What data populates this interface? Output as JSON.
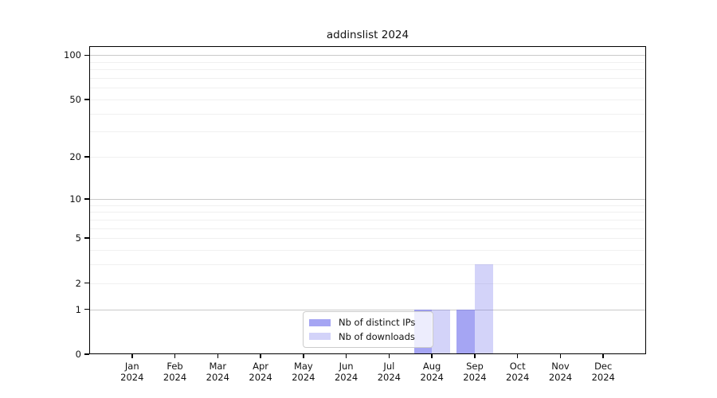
{
  "page": {
    "background": "#ffffff"
  },
  "chart_data": {
    "type": "bar",
    "title": "addinslist 2024",
    "categories": [
      "Jan",
      "Feb",
      "Mar",
      "Apr",
      "May",
      "Jun",
      "Jul",
      "Aug",
      "Sep",
      "Oct",
      "Nov",
      "Dec"
    ],
    "x_year_label": "2024",
    "series": [
      {
        "name": "Nb of distinct IPs",
        "color": "rgba(110,110,235,0.62)",
        "values": [
          0,
          0,
          0,
          0,
          0,
          0,
          0,
          1,
          1,
          0,
          0,
          0
        ]
      },
      {
        "name": "Nb of downloads",
        "color": "rgba(110,110,235,0.30)",
        "values": [
          0,
          0,
          0,
          0,
          0,
          0,
          0,
          1,
          3,
          0,
          0,
          0
        ]
      }
    ],
    "y_ticks": [
      0,
      1,
      2,
      5,
      10,
      20,
      50,
      100
    ],
    "y_major_gridlines": [
      1,
      10,
      100
    ],
    "y_minor_gridlines": [
      2,
      3,
      4,
      5,
      6,
      7,
      8,
      9,
      20,
      30,
      40,
      50,
      60,
      70,
      80,
      90
    ],
    "scale": "log10(1+y)",
    "ylim": [
      0,
      115
    ],
    "grid": true,
    "legend_position": "lower center",
    "colors": {
      "major_grid": "#c9c9c9",
      "minor_grid": "#f0f0f0",
      "spine": "#000000",
      "text": "#111111"
    }
  }
}
